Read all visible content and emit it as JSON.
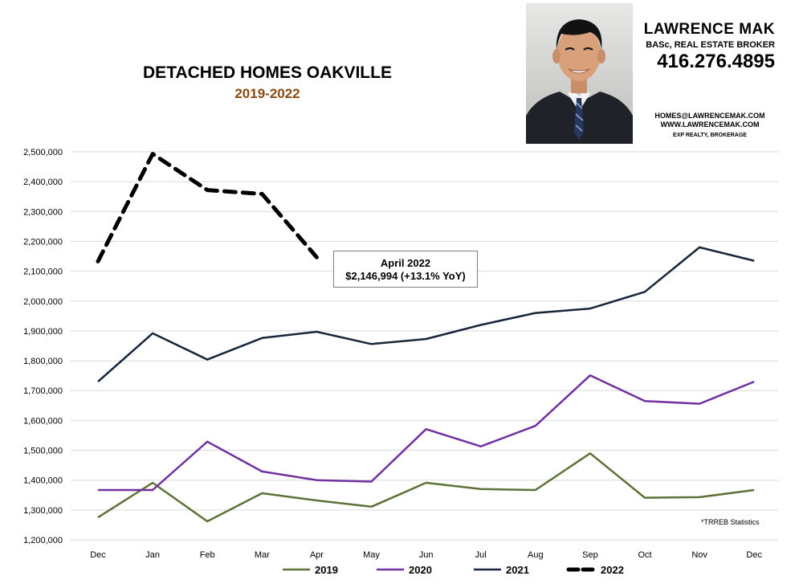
{
  "header": {
    "title": "DETACHED HOMES OAKVILLE",
    "subtitle": "2019-2022"
  },
  "agent": {
    "name": "LAWRENCE MAK",
    "credentials": "BASc, REAL ESTATE BROKER",
    "phone": "416.276.4895",
    "email": "HOMES@LAWRENCEMAK.COM",
    "website": "WWW.LAWRENCEMAK.COM",
    "brokerage": "EXP REALTY, BROKERAGE"
  },
  "callout": {
    "title": "April 2022",
    "value": "$2,146,994  (+13.1%  YoY)"
  },
  "source_note": "*TRREB Statistics",
  "chart_data": {
    "type": "line",
    "title": "DETACHED HOMES OAKVILLE",
    "subtitle": "2019-2022",
    "xlabel": "",
    "ylabel": "",
    "categories": [
      "Dec",
      "Jan",
      "Feb",
      "Mar",
      "Apr",
      "May",
      "Jun",
      "Jul",
      "Aug",
      "Sep",
      "Oct",
      "Nov",
      "Dec"
    ],
    "ylim": [
      1200000,
      2500000
    ],
    "yticks": [
      1200000,
      1300000,
      1400000,
      1500000,
      1600000,
      1700000,
      1800000,
      1900000,
      2000000,
      2100000,
      2200000,
      2300000,
      2400000,
      2500000
    ],
    "ytick_labels": [
      "1,200,000",
      "1,300,000",
      "1,400,000",
      "1,500,000",
      "1,600,000",
      "1,700,000",
      "1,800,000",
      "1,900,000",
      "2,000,000",
      "2,100,000",
      "2,200,000",
      "2,300,000",
      "2,400,000",
      "2,500,000"
    ],
    "grid": "horizontal",
    "legend_position": "bottom",
    "series": [
      {
        "name": "2019",
        "color": "#5d7236",
        "dashed": false,
        "values": [
          1275000,
          1391000,
          1262000,
          1356000,
          1332000,
          1311000,
          1391000,
          1370000,
          1367000,
          1490000,
          1341000,
          1343000,
          1367000
        ]
      },
      {
        "name": "2020",
        "color": "#7030a0",
        "dashed": false,
        "values": [
          1367000,
          1367000,
          1529000,
          1429000,
          1400000,
          1395000,
          1571000,
          1513000,
          1582000,
          1751000,
          1665000,
          1656000,
          1730000
        ]
      },
      {
        "name": "2021",
        "color": "#17263a",
        "dashed": false,
        "values": [
          1730000,
          1892000,
          1804000,
          1876000,
          1897000,
          1856000,
          1873000,
          1920000,
          1960000,
          1975000,
          2031000,
          2180000,
          2135000
        ]
      },
      {
        "name": "2022",
        "color": "#000000",
        "dashed": true,
        "values": [
          2133000,
          2493000,
          2372000,
          2359000,
          2146994,
          null,
          null,
          null,
          null,
          null,
          null,
          null,
          null
        ]
      }
    ]
  }
}
